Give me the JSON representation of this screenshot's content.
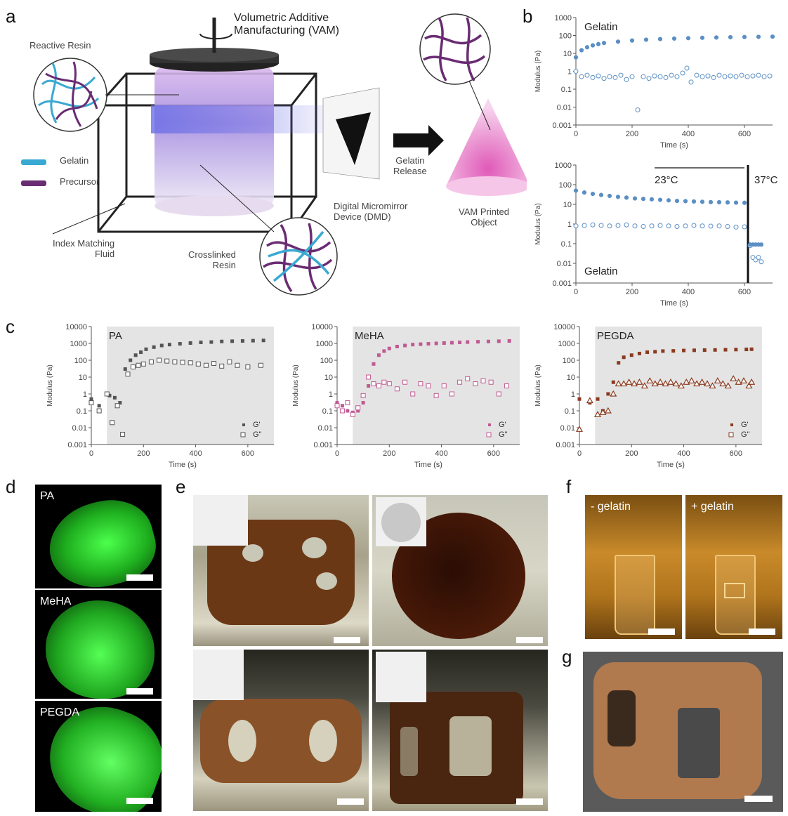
{
  "panel_letters": [
    "a",
    "b",
    "c",
    "d",
    "e",
    "f",
    "g"
  ],
  "a": {
    "vam_title": "Volumetric Additive\nManufacturing (VAM)",
    "reactive_resin": "Reactive Resin",
    "legend_gelatin": "Gelatin",
    "legend_precursor": "Precursor",
    "index_matching": "Index Matching\nFluid",
    "crosslinked": "Crosslinked\nResin",
    "dmd": "Digital Micromirror\nDevice (DMD)",
    "gelatin_release": "Gelatin\nRelease",
    "printed_object": "VAM Printed\nObject"
  },
  "colors": {
    "gelatin": "#3aa9d1",
    "precursor": "#6a2c73",
    "blue_series": "#5b8fc4",
    "pink_series": "#c05a92",
    "brown_series": "#8a3a1e",
    "gray_series": "#555555"
  },
  "chart_data": [
    {
      "id": "b-top",
      "type": "scatter",
      "title": "Gelatin",
      "xlabel": "Time (s)",
      "ylabel": "Modulus (Pa)",
      "xticks": [
        "0",
        "200",
        "400",
        "600"
      ],
      "yticks": [
        "0.001",
        "0.01",
        "0.1",
        "1",
        "10",
        "100",
        "1000"
      ],
      "xlim": [
        0,
        700
      ],
      "ylim": [
        0.001,
        1000
      ],
      "yscale": "log",
      "series": [
        {
          "marker": "filled",
          "x": [
            0,
            20,
            40,
            60,
            80,
            100,
            150,
            200,
            250,
            300,
            350,
            400,
            450,
            500,
            550,
            600,
            650,
            700
          ],
          "y": [
            6,
            15,
            22,
            28,
            33,
            38,
            45,
            52,
            58,
            63,
            67,
            71,
            74,
            77,
            80,
            82,
            84,
            86
          ]
        },
        {
          "marker": "open",
          "x": [
            0,
            20,
            40,
            60,
            80,
            100,
            120,
            140,
            160,
            180,
            200,
            220,
            240,
            260,
            280,
            300,
            320,
            340,
            360,
            380,
            395,
            410,
            430,
            450,
            470,
            490,
            510,
            530,
            550,
            570,
            590,
            610,
            630,
            650,
            670,
            690
          ],
          "y": [
            1,
            0.5,
            0.6,
            0.45,
            0.55,
            0.4,
            0.5,
            0.45,
            0.6,
            0.35,
            0.5,
            0.007,
            0.5,
            0.4,
            0.55,
            0.5,
            0.45,
            0.6,
            0.5,
            0.8,
            1.5,
            0.25,
            0.6,
            0.5,
            0.55,
            0.45,
            0.6,
            0.5,
            0.55,
            0.5,
            0.6,
            0.5,
            0.55,
            0.6,
            0.5,
            0.55
          ]
        }
      ]
    },
    {
      "id": "b-bottom",
      "type": "scatter",
      "title": "Gelatin",
      "xlabel": "Time (s)",
      "ylabel": "Modulus (Pa)",
      "xticks": [
        "0",
        "200",
        "400",
        "600"
      ],
      "yticks": [
        "0.001",
        "0.01",
        "0.1",
        "1",
        "10",
        "100",
        "1000"
      ],
      "xlim": [
        0,
        700
      ],
      "ylim": [
        0.001,
        1000
      ],
      "yscale": "log",
      "annotations": [
        "23°C",
        "37°C"
      ],
      "series": [
        {
          "marker": "filled",
          "x": [
            0,
            30,
            60,
            90,
            120,
            150,
            180,
            210,
            240,
            270,
            300,
            330,
            360,
            390,
            420,
            450,
            480,
            510,
            540,
            570,
            600
          ],
          "y": [
            50,
            40,
            34,
            30,
            27,
            24,
            22,
            20,
            19,
            18,
            17,
            16,
            15,
            14.5,
            14,
            13.5,
            13,
            12.8,
            12.5,
            12.2,
            12
          ]
        },
        {
          "marker": "open",
          "x": [
            0,
            30,
            60,
            90,
            120,
            150,
            180,
            210,
            240,
            270,
            300,
            330,
            360,
            390,
            420,
            450,
            480,
            510,
            540,
            570,
            600,
            620,
            630,
            640,
            650,
            660
          ],
          "y": [
            0.8,
            0.85,
            0.9,
            0.85,
            0.8,
            0.85,
            0.9,
            0.8,
            0.75,
            0.8,
            0.85,
            0.8,
            0.75,
            0.8,
            0.85,
            0.8,
            0.78,
            0.8,
            0.75,
            0.7,
            0.72,
            0.08,
            0.02,
            0.015,
            0.02,
            0.012
          ]
        },
        {
          "marker": "filled",
          "x": [
            620,
            630,
            640,
            650,
            660
          ],
          "y": [
            0.09,
            0.09,
            0.09,
            0.09,
            0.09
          ]
        }
      ]
    },
    {
      "id": "c-pa",
      "type": "scatter",
      "title": "PA",
      "xlabel": "Time (s)",
      "ylabel": "Modulus (Pa)",
      "xticks": [
        "0",
        "200",
        "400",
        "600"
      ],
      "yticks": [
        "0.001",
        "0.01",
        "0.1",
        "1",
        "10",
        "100",
        "1000",
        "10000"
      ],
      "xlim": [
        0,
        700
      ],
      "ylim": [
        0.001,
        10000
      ],
      "yscale": "log",
      "legend": [
        "G'",
        "G\""
      ],
      "series": [
        {
          "name": "G'",
          "marker": "filled",
          "x": [
            0,
            30,
            70,
            90,
            110,
            130,
            150,
            170,
            190,
            210,
            240,
            270,
            300,
            340,
            380,
            420,
            460,
            500,
            540,
            580,
            620,
            660
          ],
          "y": [
            0.5,
            0.2,
            0.8,
            0.6,
            0.3,
            30,
            100,
            200,
            300,
            450,
            600,
            750,
            850,
            950,
            1050,
            1150,
            1200,
            1300,
            1350,
            1400,
            1450,
            1500
          ]
        },
        {
          "name": "G\"",
          "marker": "open",
          "x": [
            0,
            30,
            60,
            80,
            100,
            120,
            140,
            160,
            180,
            200,
            230,
            260,
            290,
            320,
            350,
            380,
            410,
            440,
            470,
            500,
            530,
            560,
            600,
            650
          ],
          "y": [
            0.3,
            0.1,
            1,
            0.02,
            0.2,
            0.004,
            15,
            40,
            50,
            60,
            80,
            100,
            90,
            80,
            75,
            70,
            60,
            50,
            65,
            45,
            80,
            50,
            40,
            50
          ]
        }
      ]
    },
    {
      "id": "c-meha",
      "type": "scatter",
      "title": "MeHA",
      "xlabel": "Time (s)",
      "ylabel": "Modulus (Pa)",
      "xticks": [
        "0",
        "200",
        "400",
        "600"
      ],
      "yticks": [
        "0.001",
        "0.01",
        "0.1",
        "1",
        "10",
        "100",
        "1000",
        "10000"
      ],
      "xlim": [
        0,
        700
      ],
      "ylim": [
        0.001,
        10000
      ],
      "yscale": "log",
      "legend": [
        "G'",
        "G\""
      ],
      "series": [
        {
          "name": "G'",
          "marker": "filled",
          "x": [
            0,
            20,
            40,
            60,
            80,
            100,
            120,
            140,
            160,
            180,
            200,
            230,
            260,
            290,
            320,
            350,
            380,
            410,
            440,
            470,
            500,
            540,
            580,
            620,
            660
          ],
          "y": [
            0.3,
            0.2,
            0.1,
            0.08,
            0.1,
            0.3,
            3,
            60,
            200,
            350,
            500,
            650,
            750,
            850,
            900,
            950,
            1000,
            1050,
            1100,
            1150,
            1200,
            1250,
            1300,
            1350,
            1400
          ]
        },
        {
          "name": "G\"",
          "marker": "open",
          "x": [
            0,
            20,
            40,
            60,
            80,
            100,
            120,
            140,
            160,
            180,
            200,
            230,
            260,
            290,
            320,
            350,
            380,
            410,
            440,
            470,
            500,
            530,
            560,
            590,
            620,
            650
          ],
          "y": [
            0.2,
            0.1,
            0.3,
            0.06,
            0.15,
            0.8,
            10,
            4,
            3,
            5,
            4,
            2,
            5,
            1,
            4,
            3,
            0.8,
            3,
            1,
            5,
            8,
            4,
            6,
            5,
            1,
            3
          ]
        }
      ]
    },
    {
      "id": "c-pegda",
      "type": "scatter",
      "title": "PEGDA",
      "xlabel": "Time (s)",
      "ylabel": "Modulus (Pa)",
      "xticks": [
        "0",
        "200",
        "400",
        "600"
      ],
      "yticks": [
        "0.001",
        "0.01",
        "0.1",
        "1",
        "10",
        "100",
        "1000",
        "10000"
      ],
      "xlim": [
        0,
        700
      ],
      "ylim": [
        0.001,
        10000
      ],
      "yscale": "log",
      "legend": [
        "G'",
        "G\""
      ],
      "series": [
        {
          "name": "G'",
          "marker": "filled",
          "x": [
            0,
            40,
            70,
            90,
            110,
            130,
            150,
            170,
            200,
            230,
            260,
            290,
            320,
            360,
            400,
            440,
            480,
            520,
            560,
            600,
            640,
            660
          ],
          "y": [
            0.5,
            0.3,
            0.5,
            0.1,
            1,
            5,
            70,
            150,
            200,
            250,
            300,
            320,
            350,
            360,
            380,
            390,
            400,
            410,
            420,
            430,
            440,
            450
          ]
        },
        {
          "name": "G\"",
          "marker": "open",
          "x": [
            0,
            40,
            70,
            90,
            110,
            130,
            150,
            170,
            190,
            210,
            230,
            250,
            270,
            290,
            310,
            330,
            350,
            370,
            390,
            410,
            430,
            450,
            470,
            490,
            510,
            530,
            550,
            570,
            590,
            610,
            630,
            650,
            660
          ],
          "y": [
            0.008,
            0.4,
            0.06,
            0.08,
            0.1,
            1,
            4,
            4,
            5,
            4,
            5,
            3,
            6,
            4,
            5,
            4,
            5,
            4,
            3,
            5,
            6,
            4,
            5,
            4,
            3,
            6,
            4,
            3,
            8,
            5,
            6,
            3,
            5
          ]
        }
      ]
    }
  ],
  "d": {
    "labels": [
      "PA",
      "MeHA",
      "PEGDA"
    ]
  },
  "f": {
    "left": "- gelatin",
    "right": "+ gelatin"
  }
}
